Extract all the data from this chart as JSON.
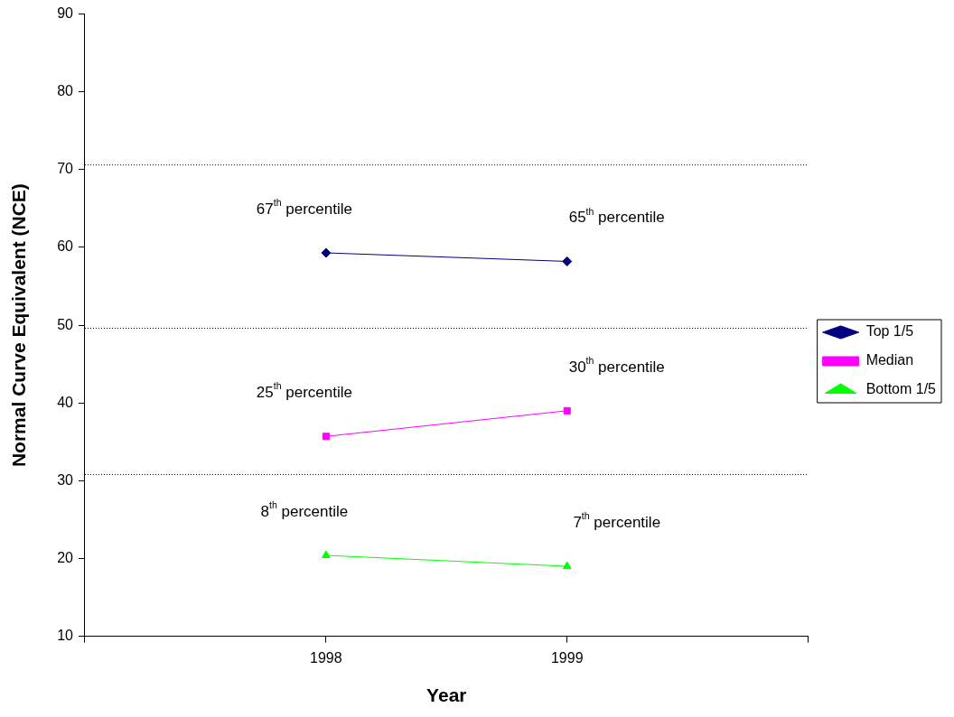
{
  "chart_data": {
    "type": "line",
    "xlabel": "Year",
    "ylabel": "Normal Curve Equivalent (NCE)",
    "x": [
      1998,
      1999
    ],
    "xlim": [
      1997,
      2000
    ],
    "xticks": [
      {
        "value": 1997,
        "label": null
      },
      1998,
      1999,
      {
        "value": 2000,
        "label": null
      }
    ],
    "ylim": [
      10,
      90
    ],
    "yticks": [
      10,
      20,
      30,
      40,
      50,
      60,
      70,
      80,
      90
    ],
    "series": [
      {
        "name": "Top 1/5",
        "color": "#000080",
        "values": [
          59.3,
          58.2
        ],
        "marker": "diamond"
      },
      {
        "name": "Median",
        "color": "#ff00ff",
        "values": [
          35.7,
          39.0
        ],
        "marker": "square"
      },
      {
        "name": "Bottom 1/5",
        "color": "#00ff00",
        "values": [
          20.4,
          19.0
        ],
        "marker": "triangle"
      }
    ],
    "ref_lines": [
      {
        "axis": "y",
        "value": 70.6,
        "color": "#000000",
        "line_style": "dotted"
      },
      {
        "axis": "y",
        "value": 49.6,
        "color": "#000000",
        "line_style": "dotted"
      },
      {
        "axis": "y",
        "value": 30.8,
        "color": "#000000",
        "line_style": "dotted"
      }
    ],
    "annotations": [
      "67$^{th}$ percentile",
      "65$^{th}$ percentile",
      "25$^{th}$ percentile",
      "30$^{th}$ percentile",
      "8$^{th}$ percentile",
      "7$^{th}$ percentile"
    ],
    "grid": false,
    "legend": "right",
    "line_style": "solid"
  }
}
